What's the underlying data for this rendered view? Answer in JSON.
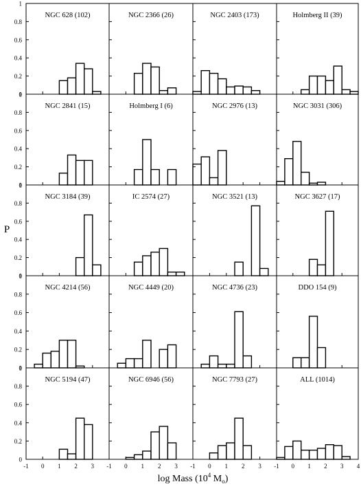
{
  "figure": {
    "ylabel": "P",
    "xlabel_prefix": "log Mass (10",
    "xlabel_exp": "4",
    "xlabel_unit": " M",
    "xlabel_sub": "o",
    "xlabel_close": ")"
  },
  "chart_data": {
    "type": "bar",
    "layout": "histogram small multiples, 5 rows x 4 columns, shared axes",
    "xlim": [
      -1,
      4
    ],
    "ylim": [
      0,
      1
    ],
    "bin_width": 0.5,
    "xticks": [
      "-1",
      "0",
      "1",
      "2",
      "3",
      "-1",
      "0",
      "1",
      "2",
      "3",
      "-1",
      "0",
      "1",
      "2",
      "3",
      "-1",
      "0",
      "1",
      "2",
      "3",
      "4"
    ],
    "yticks": [
      "0",
      "0.2",
      "0.4",
      "0.6",
      "0.8",
      "1"
    ],
    "grid": false,
    "legend": "none",
    "panels": [
      {
        "label": "NGC 628 (102)",
        "bins": [
          [
            1,
            0.15
          ],
          [
            1.5,
            0.18
          ],
          [
            2,
            0.34
          ],
          [
            2.5,
            0.28
          ],
          [
            3,
            0.03
          ]
        ]
      },
      {
        "label": "NGC 2366 (26)",
        "bins": [
          [
            0.5,
            0.23
          ],
          [
            1,
            0.34
          ],
          [
            1.5,
            0.3
          ],
          [
            2,
            0.04
          ],
          [
            2.5,
            0.07
          ]
        ]
      },
      {
        "label": "NGC 2403 (173)",
        "bins": [
          [
            -1,
            0.03
          ],
          [
            -0.5,
            0.26
          ],
          [
            0,
            0.23
          ],
          [
            0.5,
            0.17
          ],
          [
            1,
            0.08
          ],
          [
            1.5,
            0.09
          ],
          [
            2,
            0.08
          ],
          [
            2.5,
            0.04
          ]
        ]
      },
      {
        "label": "Holmberg II (39)",
        "bins": [
          [
            0.5,
            0.05
          ],
          [
            1,
            0.2
          ],
          [
            1.5,
            0.2
          ],
          [
            2,
            0.15
          ],
          [
            2.5,
            0.31
          ],
          [
            3,
            0.05
          ],
          [
            3.5,
            0.03
          ]
        ]
      },
      {
        "label": "NGC 2841 (15)",
        "bins": [
          [
            1,
            0.13
          ],
          [
            1.5,
            0.33
          ],
          [
            2,
            0.27
          ],
          [
            2.5,
            0.27
          ]
        ]
      },
      {
        "label": "Holmberg I (6)",
        "bins": [
          [
            0.5,
            0.17
          ],
          [
            1,
            0.5
          ],
          [
            1.5,
            0.17
          ],
          [
            2.5,
            0.17
          ]
        ]
      },
      {
        "label": "NGC 2976 (13)",
        "bins": [
          [
            -1,
            0.23
          ],
          [
            -0.5,
            0.31
          ],
          [
            0,
            0.08
          ],
          [
            0.5,
            0.38
          ]
        ]
      },
      {
        "label": "NGC 3031 (306)",
        "bins": [
          [
            -1,
            0.04
          ],
          [
            -0.5,
            0.29
          ],
          [
            0,
            0.48
          ],
          [
            0.5,
            0.14
          ],
          [
            1,
            0.02
          ],
          [
            1.5,
            0.03
          ]
        ]
      },
      {
        "label": "NGC 3184 (39)",
        "bins": [
          [
            2,
            0.2
          ],
          [
            2.5,
            0.67
          ],
          [
            3,
            0.12
          ]
        ]
      },
      {
        "label": "IC 2574 (27)",
        "bins": [
          [
            0.5,
            0.15
          ],
          [
            1,
            0.22
          ],
          [
            1.5,
            0.26
          ],
          [
            2,
            0.3
          ],
          [
            2.5,
            0.04
          ],
          [
            3,
            0.04
          ]
        ]
      },
      {
        "label": "NGC 3521 (13)",
        "bins": [
          [
            1.5,
            0.15
          ],
          [
            2.5,
            0.77
          ],
          [
            3,
            0.08
          ]
        ]
      },
      {
        "label": "NGC 3627 (17)",
        "bins": [
          [
            1,
            0.18
          ],
          [
            1.5,
            0.12
          ],
          [
            2,
            0.71
          ]
        ]
      },
      {
        "label": "NGC 4214 (56)",
        "bins": [
          [
            -0.5,
            0.04
          ],
          [
            0,
            0.16
          ],
          [
            0.5,
            0.18
          ],
          [
            1,
            0.3
          ],
          [
            1.5,
            0.3
          ],
          [
            2,
            0.02
          ]
        ]
      },
      {
        "label": "NGC 4449 (20)",
        "bins": [
          [
            -0.5,
            0.05
          ],
          [
            0,
            0.1
          ],
          [
            0.5,
            0.1
          ],
          [
            1,
            0.3
          ],
          [
            2,
            0.2
          ],
          [
            2.5,
            0.25
          ]
        ]
      },
      {
        "label": "NGC 4736 (23)",
        "bins": [
          [
            -0.5,
            0.04
          ],
          [
            0,
            0.13
          ],
          [
            0.5,
            0.04
          ],
          [
            1,
            0.04
          ],
          [
            1.5,
            0.61
          ],
          [
            2,
            0.13
          ]
        ]
      },
      {
        "label": "DDO 154 (9)",
        "bins": [
          [
            0,
            0.11
          ],
          [
            0.5,
            0.11
          ],
          [
            1,
            0.56
          ],
          [
            1.5,
            0.22
          ]
        ]
      },
      {
        "label": "NGC 5194 (47)",
        "bins": [
          [
            1,
            0.11
          ],
          [
            1.5,
            0.06
          ],
          [
            2,
            0.45
          ],
          [
            2.5,
            0.38
          ]
        ]
      },
      {
        "label": "NGC 6946 (56)",
        "bins": [
          [
            0,
            0.02
          ],
          [
            0.5,
            0.05
          ],
          [
            1,
            0.09
          ],
          [
            1.5,
            0.3
          ],
          [
            2,
            0.36
          ],
          [
            2.5,
            0.18
          ]
        ]
      },
      {
        "label": "NGC 7793 (27)",
        "bins": [
          [
            0,
            0.07
          ],
          [
            0.5,
            0.15
          ],
          [
            1,
            0.18
          ],
          [
            1.5,
            0.45
          ],
          [
            2,
            0.15
          ]
        ]
      },
      {
        "label": "ALL (1014)",
        "bins": [
          [
            -1,
            0.02
          ],
          [
            -0.5,
            0.14
          ],
          [
            0,
            0.2
          ],
          [
            0.5,
            0.1
          ],
          [
            1,
            0.1
          ],
          [
            1.5,
            0.12
          ],
          [
            2,
            0.16
          ],
          [
            2.5,
            0.15
          ],
          [
            3,
            0.03
          ]
        ]
      }
    ]
  }
}
